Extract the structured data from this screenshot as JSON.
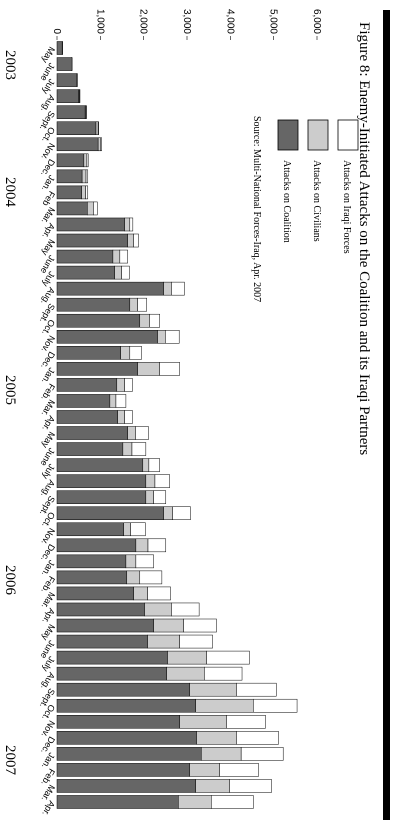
{
  "chart_data": {
    "type": "stacked-bar",
    "title": "Figure 8:  Enemy-Initiated Attacks on the Coalition and its Iraqi Partners",
    "source": "Source: Multi-National Forces-Iraq, Apr. 2007",
    "categories": [
      "May",
      "June",
      "July",
      "Aug.",
      "Sept.",
      "Oct.",
      "Nov.",
      "Dec.",
      "Jan.",
      "Feb",
      "Mar.",
      "Apr.",
      "May",
      "June",
      "July",
      "Aug.",
      "Sept.",
      "Oct.",
      "Nov.",
      "Dec.",
      "Jan.",
      "Feb.",
      "Mar.",
      "Apr.",
      "May",
      "June",
      "July",
      "Aug.",
      "Sept.",
      "Oct.",
      "Nov.",
      "Dec.",
      "Jan.",
      "Feb.",
      "Mar.",
      "Apr.",
      "May",
      "June",
      "July",
      "Aug.",
      "Sept.",
      "Oct.",
      "Nov.",
      "Dec.",
      "Jan.",
      "Feb.",
      "Mar.",
      "Apr."
    ],
    "year_labels": [
      "2003",
      "2004",
      "2005",
      "2006",
      "2007"
    ],
    "series": [
      {
        "name": "Attacks on Iraqi Forces",
        "color": "#ffffff",
        "values": [
          0,
          0,
          0,
          10,
          10,
          10,
          20,
          30,
          40,
          50,
          90,
          70,
          110,
          180,
          180,
          300,
          210,
          230,
          320,
          270,
          460,
          180,
          230,
          180,
          300,
          320,
          250,
          340,
          280,
          410,
          340,
          410,
          410,
          510,
          530,
          640,
          760,
          760,
          990,
          870,
          920,
          1010,
          900,
          970,
          970,
          900,
          970,
          970
        ]
      },
      {
        "name": "Attacks on Civilians",
        "color": "#cccccc",
        "values": [
          10,
          20,
          10,
          20,
          20,
          50,
          60,
          70,
          90,
          90,
          140,
          120,
          140,
          160,
          160,
          180,
          180,
          230,
          180,
          210,
          510,
          180,
          140,
          160,
          180,
          210,
          140,
          210,
          180,
          210,
          160,
          280,
          230,
          300,
          320,
          620,
          690,
          740,
          900,
          870,
          1080,
          1330,
          1080,
          920,
          920,
          690,
          780,
          760
        ]
      },
      {
        "name": "Attacks on Coalition",
        "color": "#666666",
        "values": [
          120,
          330,
          460,
          500,
          650,
          900,
          950,
          620,
          580,
          570,
          700,
          1560,
          1630,
          1290,
          1330,
          2460,
          1680,
          1910,
          2320,
          1470,
          1860,
          1380,
          1220,
          1400,
          1630,
          1520,
          1980,
          2050,
          2050,
          2460,
          1540,
          1820,
          1590,
          1610,
          1770,
          2020,
          2230,
          2090,
          2550,
          2530,
          3060,
          3200,
          2830,
          3220,
          3330,
          3060,
          3200,
          2800
        ]
      }
    ],
    "ylim": [
      0,
      6000
    ],
    "yticks": [
      0,
      {
        "value": 1000,
        "label": "1,000"
      },
      {
        "value": 2000,
        "label": "2,000"
      },
      {
        "value": 3000,
        "label": "3,000"
      },
      {
        "value": 4000,
        "label": "4,000"
      },
      {
        "value": 5000,
        "label": "5,000"
      },
      {
        "value": 6000,
        "label": "6,000"
      }
    ]
  }
}
